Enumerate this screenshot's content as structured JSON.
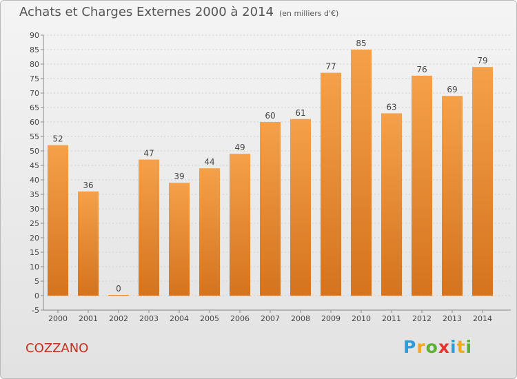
{
  "chart_data": {
    "type": "bar",
    "title": "Achats et Charges Externes 2000 à 2014",
    "subtitle": "(en milliers d'€)",
    "categories": [
      "2000",
      "2001",
      "2002",
      "2003",
      "2004",
      "2005",
      "2006",
      "2007",
      "2008",
      "2009",
      "2010",
      "2011",
      "2012",
      "2013",
      "2014"
    ],
    "values": [
      52,
      36,
      0,
      47,
      39,
      44,
      49,
      60,
      61,
      77,
      85,
      63,
      76,
      69,
      79
    ],
    "ylim": [
      -5,
      90
    ],
    "yticks": [
      -5,
      0,
      5,
      10,
      15,
      20,
      25,
      30,
      35,
      40,
      45,
      50,
      55,
      60,
      65,
      70,
      75,
      80,
      85,
      90
    ],
    "grid": true,
    "bar_color_top": "#f5a04a",
    "bar_color_bottom": "#d5731e"
  },
  "place_name": "COZZANO",
  "logo": {
    "letters": [
      "P",
      "r",
      "o",
      "x",
      "i",
      "t",
      "i"
    ],
    "colors": [
      "#2f9bd8",
      "#f0a81c",
      "#5ab031",
      "#e8322c",
      "#2f9bd8",
      "#f0a81c",
      "#5ab031"
    ]
  }
}
